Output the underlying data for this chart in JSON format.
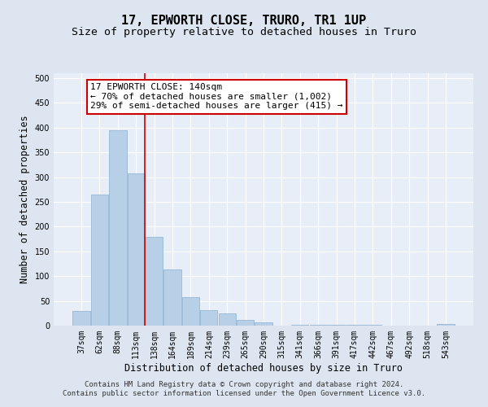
{
  "title": "17, EPWORTH CLOSE, TRURO, TR1 1UP",
  "subtitle": "Size of property relative to detached houses in Truro",
  "xlabel": "Distribution of detached houses by size in Truro",
  "ylabel": "Number of detached properties",
  "footer_line1": "Contains HM Land Registry data © Crown copyright and database right 2024.",
  "footer_line2": "Contains public sector information licensed under the Open Government Licence v3.0.",
  "bar_labels": [
    "37sqm",
    "62sqm",
    "88sqm",
    "113sqm",
    "138sqm",
    "164sqm",
    "189sqm",
    "214sqm",
    "239sqm",
    "265sqm",
    "290sqm",
    "315sqm",
    "341sqm",
    "366sqm",
    "391sqm",
    "417sqm",
    "442sqm",
    "467sqm",
    "492sqm",
    "518sqm",
    "543sqm"
  ],
  "bar_values": [
    30,
    265,
    395,
    308,
    180,
    114,
    57,
    32,
    25,
    11,
    6,
    0,
    1,
    1,
    1,
    1,
    1,
    0,
    0,
    0,
    4
  ],
  "bar_color": "#b8cfe8",
  "bar_edgecolor": "#8ab0d0",
  "annotation_line1": "17 EPWORTH CLOSE: 140sqm",
  "annotation_line2": "← 70% of detached houses are smaller (1,002)",
  "annotation_line3": "29% of semi-detached houses are larger (415) →",
  "annotation_box_facecolor": "#ffffff",
  "annotation_box_edgecolor": "#cc0000",
  "vline_color": "#cc0000",
  "vline_pos": 3.5,
  "ylim": [
    0,
    510
  ],
  "yticks": [
    0,
    50,
    100,
    150,
    200,
    250,
    300,
    350,
    400,
    450,
    500
  ],
  "bg_color": "#dde6f0",
  "plot_bg_color": "#e8eef7",
  "grid_color": "#ffffff",
  "title_fontsize": 11,
  "subtitle_fontsize": 9.5,
  "axis_label_fontsize": 8.5,
  "tick_fontsize": 7,
  "annotation_fontsize": 8,
  "footer_fontsize": 6.5
}
